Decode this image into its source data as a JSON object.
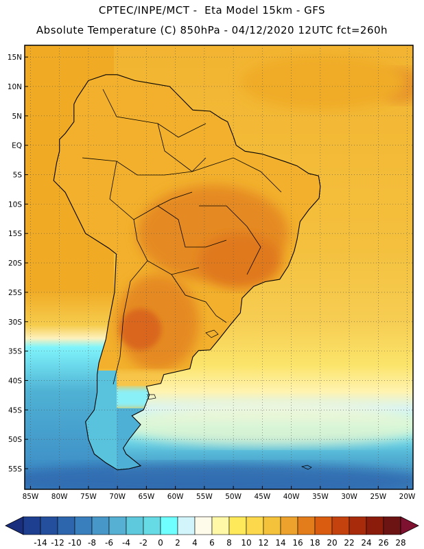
{
  "header": {
    "line1": "CPTEC/INPE/MCT -  Eta Model 15km - GFS",
    "line2": "Absolute Temperature (C) 850hPa - 04/12/2020 12UTC fct=260h"
  },
  "map": {
    "lon_range": [
      -86,
      -19
    ],
    "lat_range": [
      -58.5,
      17
    ],
    "lon_ticks": [
      {
        "value": -85,
        "label": "85W"
      },
      {
        "value": -80,
        "label": "80W"
      },
      {
        "value": -75,
        "label": "75W"
      },
      {
        "value": -70,
        "label": "70W"
      },
      {
        "value": -65,
        "label": "65W"
      },
      {
        "value": -60,
        "label": "60W"
      },
      {
        "value": -55,
        "label": "55W"
      },
      {
        "value": -50,
        "label": "50W"
      },
      {
        "value": -45,
        "label": "45W"
      },
      {
        "value": -40,
        "label": "40W"
      },
      {
        "value": -35,
        "label": "35W"
      },
      {
        "value": -30,
        "label": "30W"
      },
      {
        "value": -25,
        "label": "25W"
      },
      {
        "value": -20,
        "label": "20W"
      }
    ],
    "lat_ticks": [
      {
        "value": 15,
        "label": "15N"
      },
      {
        "value": 10,
        "label": "10N"
      },
      {
        "value": 5,
        "label": "5N"
      },
      {
        "value": 0,
        "label": "EQ"
      },
      {
        "value": -5,
        "label": "5S"
      },
      {
        "value": -10,
        "label": "10S"
      },
      {
        "value": -15,
        "label": "15S"
      },
      {
        "value": -20,
        "label": "20S"
      },
      {
        "value": -25,
        "label": "25S"
      },
      {
        "value": -30,
        "label": "30S"
      },
      {
        "value": -35,
        "label": "35S"
      },
      {
        "value": -40,
        "label": "40S"
      },
      {
        "value": -45,
        "label": "45S"
      },
      {
        "value": -50,
        "label": "50S"
      },
      {
        "value": -55,
        "label": "55S"
      }
    ],
    "continent_outline": [
      [
        -77,
        8
      ],
      [
        -75,
        11
      ],
      [
        -72,
        12
      ],
      [
        -70,
        12
      ],
      [
        -67,
        11
      ],
      [
        -64,
        10.5
      ],
      [
        -61,
        10
      ],
      [
        -59,
        8
      ],
      [
        -57,
        6
      ],
      [
        -54,
        5.8
      ],
      [
        -52,
        4.5
      ],
      [
        -51,
        4
      ],
      [
        -50,
        1.5
      ],
      [
        -49.5,
        0
      ],
      [
        -48,
        -1
      ],
      [
        -45,
        -1.5
      ],
      [
        -41,
        -2.8
      ],
      [
        -39,
        -3.5
      ],
      [
        -37,
        -4.8
      ],
      [
        -35.3,
        -5.2
      ],
      [
        -35,
        -7
      ],
      [
        -35.2,
        -9
      ],
      [
        -37,
        -11
      ],
      [
        -38.5,
        -13
      ],
      [
        -39,
        -16
      ],
      [
        -39.5,
        -18
      ],
      [
        -40.5,
        -20.5
      ],
      [
        -42,
        -22.8
      ],
      [
        -44.5,
        -23.2
      ],
      [
        -46.5,
        -24
      ],
      [
        -48.5,
        -26
      ],
      [
        -48.8,
        -28.5
      ],
      [
        -50.5,
        -30.5
      ],
      [
        -52.5,
        -33
      ],
      [
        -54,
        -34.8
      ],
      [
        -56,
        -34.9
      ],
      [
        -57,
        -36
      ],
      [
        -57.5,
        -38
      ],
      [
        -62,
        -39
      ],
      [
        -62.5,
        -40.5
      ],
      [
        -65,
        -41
      ],
      [
        -64.5,
        -42.5
      ],
      [
        -65.5,
        -45
      ],
      [
        -67.5,
        -46
      ],
      [
        -66,
        -47.5
      ],
      [
        -68,
        -50
      ],
      [
        -69,
        -51.5
      ],
      [
        -68.5,
        -52.5
      ],
      [
        -66,
        -54.5
      ],
      [
        -68,
        -55
      ],
      [
        -70,
        -55.2
      ],
      [
        -72,
        -54
      ],
      [
        -74,
        -52.5
      ],
      [
        -75,
        -50
      ],
      [
        -75.5,
        -47
      ],
      [
        -74,
        -45
      ],
      [
        -73.5,
        -42
      ],
      [
        -73.5,
        -39
      ],
      [
        -73.2,
        -37
      ],
      [
        -72,
        -33
      ],
      [
        -71.5,
        -30
      ],
      [
        -70.5,
        -25
      ],
      [
        -70.2,
        -18.5
      ],
      [
        -71.5,
        -17.5
      ],
      [
        -75.5,
        -15
      ],
      [
        -77,
        -12
      ],
      [
        -79,
        -8
      ],
      [
        -81,
        -6
      ],
      [
        -80.5,
        -3
      ],
      [
        -80,
        -1
      ],
      [
        -80,
        1
      ],
      [
        -79,
        2
      ],
      [
        -77.5,
        4
      ],
      [
        -77.5,
        7
      ],
      [
        -77,
        8
      ]
    ]
  },
  "colorbar": {
    "labels": [
      "-14",
      "-12",
      "-10",
      "-8",
      "-6",
      "-4",
      "-2",
      "0",
      "2",
      "4",
      "6",
      "8",
      "10",
      "12",
      "14",
      "16",
      "18",
      "20",
      "22",
      "24",
      "26",
      "28"
    ],
    "colors": [
      "#1e3f8f",
      "#244f9c",
      "#2e66ad",
      "#3a7fbd",
      "#4798c8",
      "#55b0d4",
      "#5ec8dc",
      "#66dbe6",
      "#6fffff",
      "#d2f5fc",
      "#fffbea",
      "#fff8a6",
      "#fde95a",
      "#fcd94c",
      "#f5c23c",
      "#eca22c",
      "#e37d1c",
      "#d95c10",
      "#c4420e",
      "#a82c0c",
      "#8b1c0c",
      "#6c1414"
    ],
    "under_color": "#1a2e7e",
    "over_color": "#7e1030"
  }
}
